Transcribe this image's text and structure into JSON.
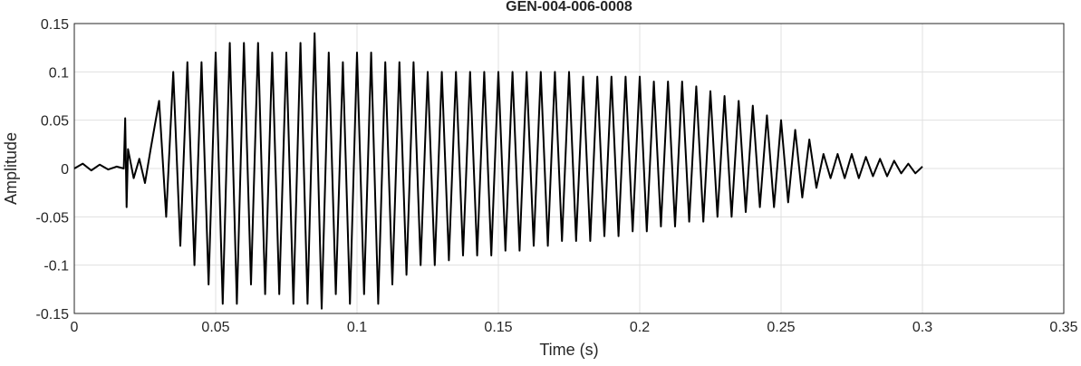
{
  "chart_data": {
    "type": "line",
    "title": "GEN-004-006-0008",
    "x_label": "Time (s)",
    "y_label": "Amplitude",
    "xlim": [
      0,
      0.35
    ],
    "ylim": [
      -0.15,
      0.15
    ],
    "xticks": [
      0,
      0.05,
      0.1,
      0.15,
      0.2,
      0.25,
      0.3,
      0.35
    ],
    "yticks": [
      -0.15,
      -0.1,
      -0.05,
      0,
      0.05,
      0.1,
      0.15
    ],
    "grid": true,
    "series": [
      {
        "color": "#000000",
        "x": [
          0,
          0.003,
          0.006,
          0.009,
          0.012,
          0.015,
          0.0175,
          0.018,
          0.0185,
          0.019,
          0.021,
          0.023,
          0.025,
          0.027,
          0.03,
          0.0325,
          0.035,
          0.0375,
          0.04,
          0.0425,
          0.045,
          0.0475,
          0.05,
          0.0525,
          0.055,
          0.0575,
          0.06,
          0.0625,
          0.065,
          0.0675,
          0.07,
          0.0725,
          0.075,
          0.0775,
          0.08,
          0.0825,
          0.085,
          0.0875,
          0.09,
          0.0925,
          0.095,
          0.0975,
          0.1,
          0.1025,
          0.105,
          0.1075,
          0.11,
          0.1125,
          0.115,
          0.1175,
          0.12,
          0.1225,
          0.125,
          0.1275,
          0.13,
          0.1325,
          0.135,
          0.1375,
          0.14,
          0.1425,
          0.145,
          0.1475,
          0.15,
          0.1525,
          0.155,
          0.1575,
          0.16,
          0.1625,
          0.165,
          0.1675,
          0.17,
          0.1725,
          0.175,
          0.1775,
          0.18,
          0.1825,
          0.185,
          0.1875,
          0.19,
          0.1925,
          0.195,
          0.1975,
          0.2,
          0.2025,
          0.205,
          0.2075,
          0.21,
          0.2125,
          0.215,
          0.2175,
          0.22,
          0.2225,
          0.225,
          0.2275,
          0.23,
          0.2325,
          0.235,
          0.2375,
          0.24,
          0.2425,
          0.245,
          0.2475,
          0.25,
          0.2525,
          0.255,
          0.2575,
          0.26,
          0.2625,
          0.265,
          0.2675,
          0.27,
          0.2725,
          0.275,
          0.2775,
          0.28,
          0.2825,
          0.285,
          0.2875,
          0.29,
          0.2925,
          0.295,
          0.2975,
          0.3
        ],
        "values": [
          0,
          0.005,
          -0.002,
          0.004,
          -0.001,
          0.002,
          0,
          0.052,
          -0.04,
          0.02,
          -0.01,
          0.01,
          -0.015,
          0.02,
          0.07,
          -0.05,
          0.1,
          -0.08,
          0.11,
          -0.1,
          0.11,
          -0.12,
          0.12,
          -0.14,
          0.13,
          -0.14,
          0.13,
          -0.12,
          0.13,
          -0.13,
          0.12,
          -0.13,
          0.12,
          -0.14,
          0.13,
          -0.14,
          0.14,
          -0.145,
          0.12,
          -0.13,
          0.11,
          -0.14,
          0.12,
          -0.13,
          0.12,
          -0.14,
          0.11,
          -0.12,
          0.11,
          -0.11,
          0.11,
          -0.1,
          0.1,
          -0.1,
          0.1,
          -0.095,
          0.1,
          -0.09,
          0.1,
          -0.09,
          0.1,
          -0.09,
          0.1,
          -0.085,
          0.1,
          -0.085,
          0.1,
          -0.08,
          0.1,
          -0.08,
          0.1,
          -0.075,
          0.1,
          -0.075,
          0.095,
          -0.075,
          0.095,
          -0.07,
          0.095,
          -0.07,
          0.095,
          -0.065,
          0.095,
          -0.065,
          0.09,
          -0.06,
          0.09,
          -0.06,
          0.09,
          -0.055,
          0.085,
          -0.055,
          0.08,
          -0.05,
          0.075,
          -0.05,
          0.07,
          -0.045,
          0.065,
          -0.04,
          0.055,
          -0.04,
          0.05,
          -0.035,
          0.04,
          -0.03,
          0.03,
          -0.02,
          0.015,
          -0.01,
          0.015,
          -0.01,
          0.015,
          -0.01,
          0.012,
          -0.008,
          0.01,
          -0.008,
          0.008,
          -0.005,
          0.005,
          -0.005,
          0.002
        ]
      }
    ]
  }
}
